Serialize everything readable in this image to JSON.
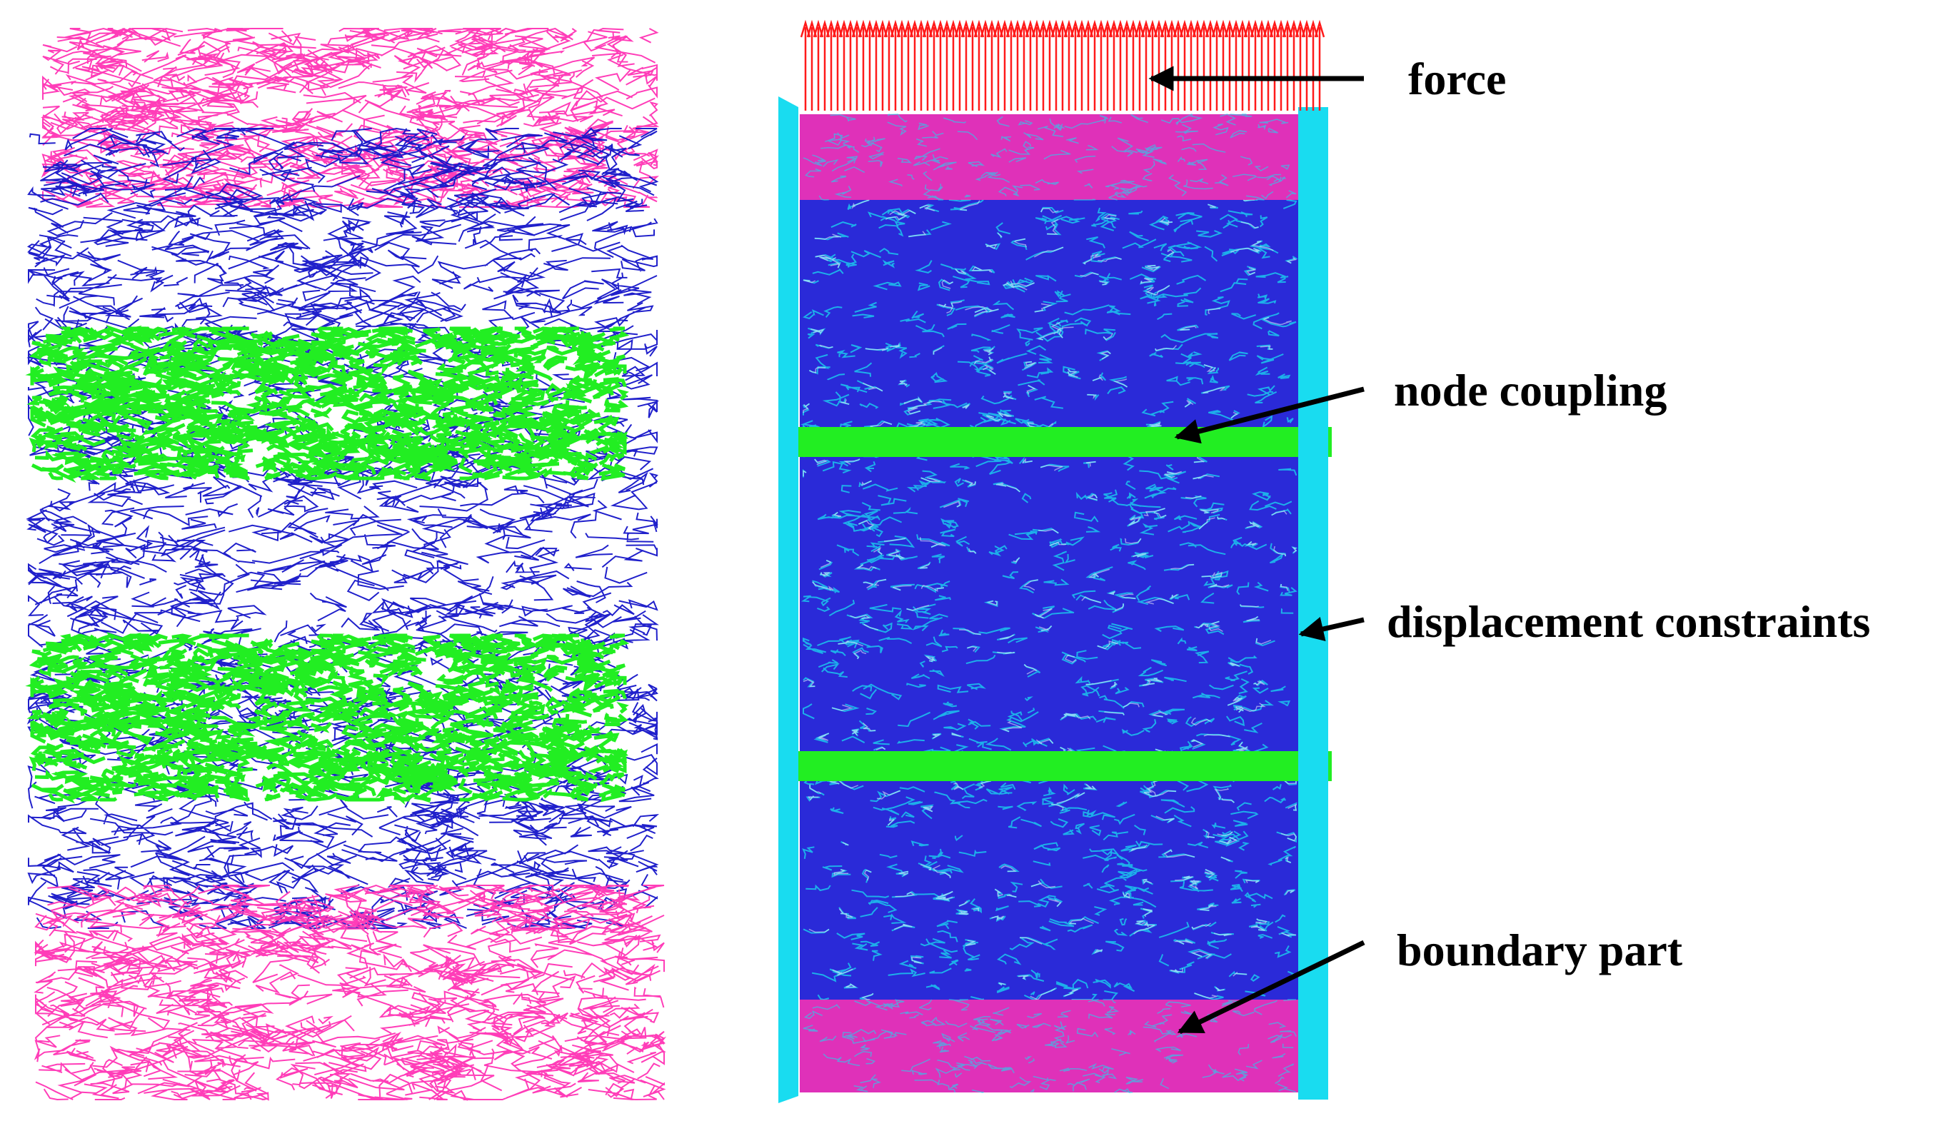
{
  "labels": {
    "force": "force",
    "node_coupling": "node coupling",
    "displacement_constraints": "displacement constraints",
    "boundary_part": "boundary part"
  },
  "colors": {
    "boundary_fiber": "#ff33b4",
    "matrix_fiber": "#1414c8",
    "coupling_fiber": "#22ee22",
    "constraint": "#19dcf0",
    "force": "#ff1a1a",
    "arrow": "#000000"
  }
}
